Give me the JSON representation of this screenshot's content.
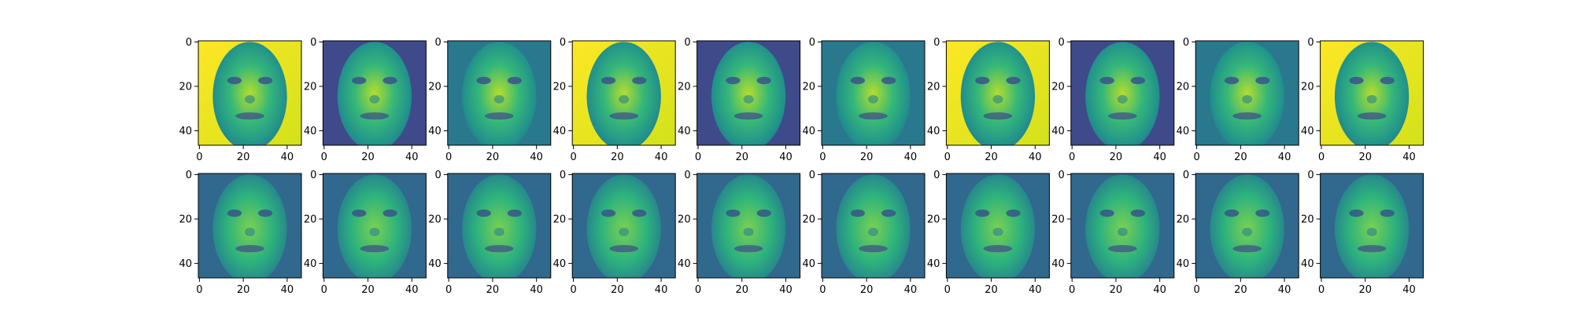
{
  "figure": {
    "rows": 2,
    "cols": 10,
    "colormap": "viridis",
    "colors": {
      "viridis_dark": "#440154",
      "viridis_mid": "#21918c",
      "viridis_light": "#fde725"
    }
  },
  "chart_data": [
    {
      "type": "heatmap",
      "row": 0,
      "col": 0,
      "description": "face image (original)",
      "xlim": [
        0,
        47
      ],
      "ylim": [
        47,
        0
      ],
      "x_ticks": [
        "0",
        "20",
        "40"
      ],
      "y_ticks": [
        "0",
        "20",
        "40"
      ]
    },
    {
      "type": "heatmap",
      "row": 0,
      "col": 1,
      "description": "face image (original)",
      "xlim": [
        0,
        47
      ],
      "ylim": [
        47,
        0
      ],
      "x_ticks": [
        "0",
        "20",
        "40"
      ],
      "y_ticks": [
        "0",
        "20",
        "40"
      ]
    },
    {
      "type": "heatmap",
      "row": 0,
      "col": 2,
      "description": "face image (original)",
      "xlim": [
        0,
        47
      ],
      "ylim": [
        47,
        0
      ],
      "x_ticks": [
        "0",
        "20",
        "40"
      ],
      "y_ticks": [
        "0",
        "20",
        "40"
      ]
    },
    {
      "type": "heatmap",
      "row": 0,
      "col": 3,
      "description": "face image (original)",
      "xlim": [
        0,
        47
      ],
      "ylim": [
        47,
        0
      ],
      "x_ticks": [
        "0",
        "20",
        "40"
      ],
      "y_ticks": [
        "0",
        "20",
        "40"
      ]
    },
    {
      "type": "heatmap",
      "row": 0,
      "col": 4,
      "description": "face image (original)",
      "xlim": [
        0,
        47
      ],
      "ylim": [
        47,
        0
      ],
      "x_ticks": [
        "0",
        "20",
        "40"
      ],
      "y_ticks": [
        "0",
        "20",
        "40"
      ]
    },
    {
      "type": "heatmap",
      "row": 0,
      "col": 5,
      "description": "face image (original)",
      "xlim": [
        0,
        47
      ],
      "ylim": [
        47,
        0
      ],
      "x_ticks": [
        "0",
        "20",
        "40"
      ],
      "y_ticks": [
        "0",
        "20",
        "40"
      ]
    },
    {
      "type": "heatmap",
      "row": 0,
      "col": 6,
      "description": "face image (original)",
      "xlim": [
        0,
        47
      ],
      "ylim": [
        47,
        0
      ],
      "x_ticks": [
        "0",
        "20",
        "40"
      ],
      "y_ticks": [
        "0",
        "20",
        "40"
      ]
    },
    {
      "type": "heatmap",
      "row": 0,
      "col": 7,
      "description": "face image (original)",
      "xlim": [
        0,
        47
      ],
      "ylim": [
        47,
        0
      ],
      "x_ticks": [
        "0",
        "20",
        "40"
      ],
      "y_ticks": [
        "0",
        "20",
        "40"
      ]
    },
    {
      "type": "heatmap",
      "row": 0,
      "col": 8,
      "description": "face image (original)",
      "xlim": [
        0,
        47
      ],
      "ylim": [
        47,
        0
      ],
      "x_ticks": [
        "0",
        "20",
        "40"
      ],
      "y_ticks": [
        "0",
        "20",
        "40"
      ]
    },
    {
      "type": "heatmap",
      "row": 0,
      "col": 9,
      "description": "face image (original)",
      "xlim": [
        0,
        47
      ],
      "ylim": [
        47,
        0
      ],
      "x_ticks": [
        "0",
        "20",
        "40"
      ],
      "y_ticks": [
        "0",
        "20",
        "40"
      ]
    },
    {
      "type": "heatmap",
      "row": 1,
      "col": 0,
      "description": "face image (reconstruction)",
      "xlim": [
        0,
        47
      ],
      "ylim": [
        47,
        0
      ],
      "x_ticks": [
        "0",
        "20",
        "40"
      ],
      "y_ticks": [
        "0",
        "20",
        "40"
      ]
    },
    {
      "type": "heatmap",
      "row": 1,
      "col": 1,
      "description": "face image (reconstruction)",
      "xlim": [
        0,
        47
      ],
      "ylim": [
        47,
        0
      ],
      "x_ticks": [
        "0",
        "20",
        "40"
      ],
      "y_ticks": [
        "0",
        "20",
        "40"
      ]
    },
    {
      "type": "heatmap",
      "row": 1,
      "col": 2,
      "description": "face image (reconstruction)",
      "xlim": [
        0,
        47
      ],
      "ylim": [
        47,
        0
      ],
      "x_ticks": [
        "0",
        "20",
        "40"
      ],
      "y_ticks": [
        "0",
        "20",
        "40"
      ]
    },
    {
      "type": "heatmap",
      "row": 1,
      "col": 3,
      "description": "face image (reconstruction)",
      "xlim": [
        0,
        47
      ],
      "ylim": [
        47,
        0
      ],
      "x_ticks": [
        "0",
        "20",
        "40"
      ],
      "y_ticks": [
        "0",
        "20",
        "40"
      ]
    },
    {
      "type": "heatmap",
      "row": 1,
      "col": 4,
      "description": "face image (reconstruction)",
      "xlim": [
        0,
        47
      ],
      "ylim": [
        47,
        0
      ],
      "x_ticks": [
        "0",
        "20",
        "40"
      ],
      "y_ticks": [
        "0",
        "20",
        "40"
      ]
    },
    {
      "type": "heatmap",
      "row": 1,
      "col": 5,
      "description": "face image (reconstruction)",
      "xlim": [
        0,
        47
      ],
      "ylim": [
        47,
        0
      ],
      "x_ticks": [
        "0",
        "20",
        "40"
      ],
      "y_ticks": [
        "0",
        "20",
        "40"
      ]
    },
    {
      "type": "heatmap",
      "row": 1,
      "col": 6,
      "description": "face image (reconstruction)",
      "xlim": [
        0,
        47
      ],
      "ylim": [
        47,
        0
      ],
      "x_ticks": [
        "0",
        "20",
        "40"
      ],
      "y_ticks": [
        "0",
        "20",
        "40"
      ]
    },
    {
      "type": "heatmap",
      "row": 1,
      "col": 7,
      "description": "face image (reconstruction)",
      "xlim": [
        0,
        47
      ],
      "ylim": [
        47,
        0
      ],
      "x_ticks": [
        "0",
        "20",
        "40"
      ],
      "y_ticks": [
        "0",
        "20",
        "40"
      ]
    },
    {
      "type": "heatmap",
      "row": 1,
      "col": 8,
      "description": "face image (reconstruction)",
      "xlim": [
        0,
        47
      ],
      "ylim": [
        47,
        0
      ],
      "x_ticks": [
        "0",
        "20",
        "40"
      ],
      "y_ticks": [
        "0",
        "20",
        "40"
      ]
    },
    {
      "type": "heatmap",
      "row": 1,
      "col": 9,
      "description": "face image (reconstruction)",
      "xlim": [
        0,
        47
      ],
      "ylim": [
        47,
        0
      ],
      "x_ticks": [
        "0",
        "20",
        "40"
      ],
      "y_ticks": [
        "0",
        "20",
        "40"
      ]
    }
  ]
}
